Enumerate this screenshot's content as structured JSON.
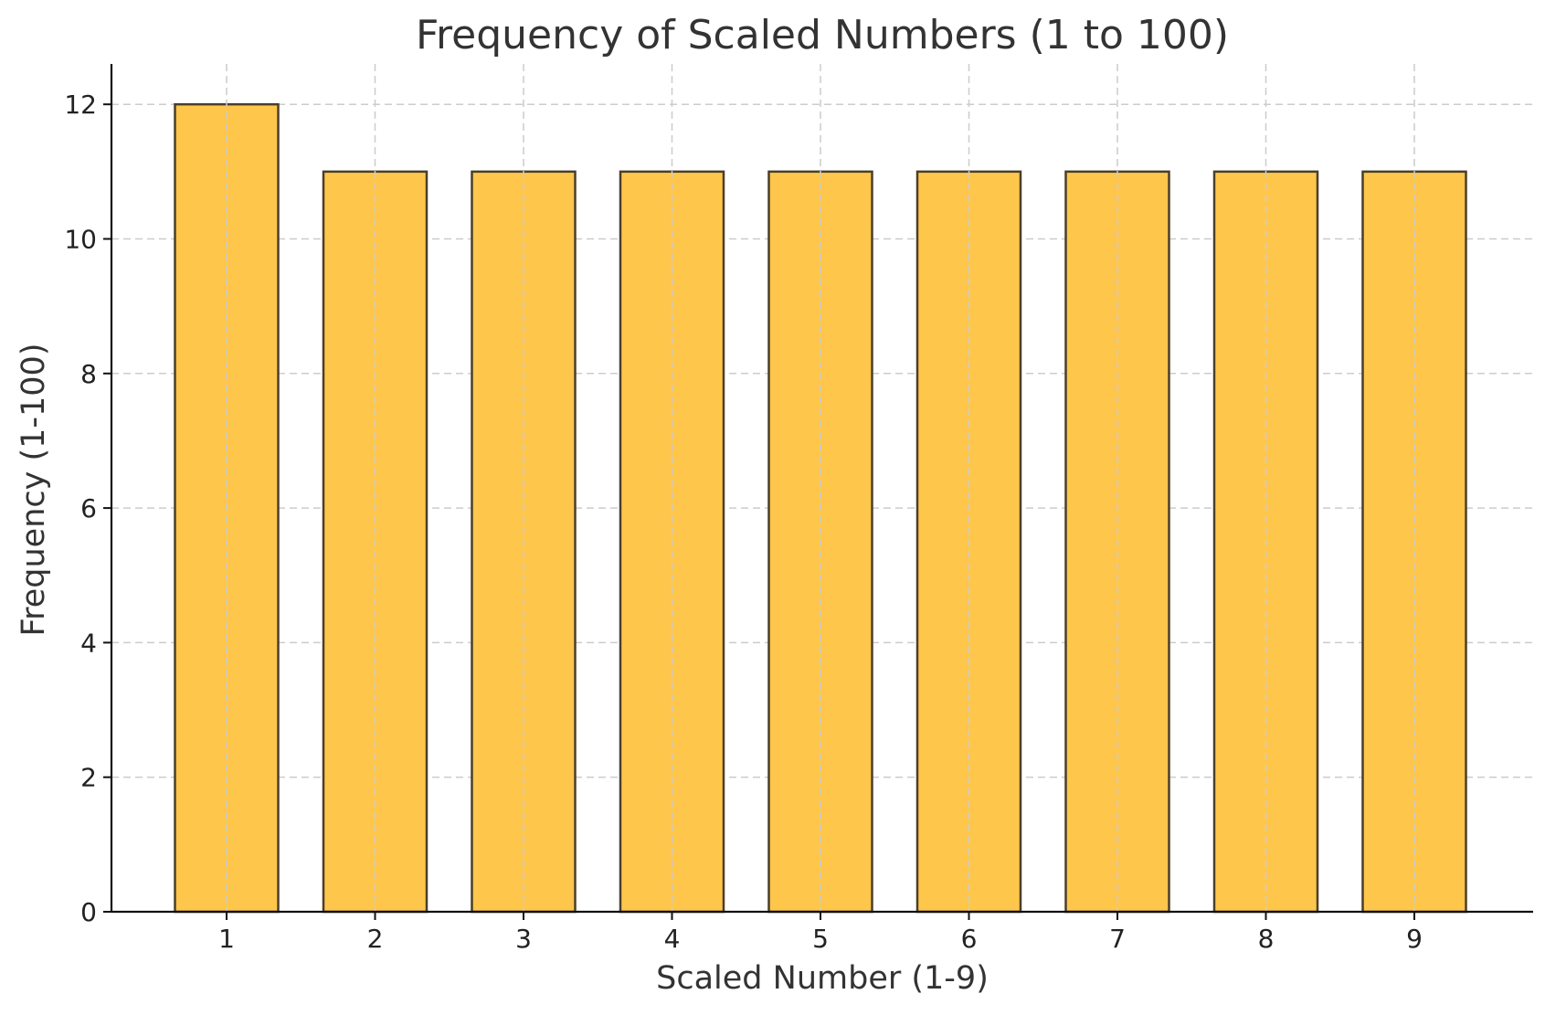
{
  "chart_data": {
    "type": "bar",
    "title": "Frequency of Scaled Numbers (1 to 100)",
    "xlabel": "Scaled Number (1-9)",
    "ylabel": "Frequency (1-100)",
    "categories": [
      "1",
      "2",
      "3",
      "4",
      "5",
      "6",
      "7",
      "8",
      "9"
    ],
    "values": [
      12,
      11,
      11,
      11,
      11,
      11,
      11,
      11,
      11
    ],
    "yticks": [
      0,
      2,
      4,
      6,
      8,
      10,
      12
    ],
    "ylim": [
      0,
      12.6
    ],
    "grid": true,
    "colors": {
      "bar_fill": "#ffc64c",
      "bar_edge": "#4a3f2a",
      "grid": "#cccccc",
      "axis": "#111111"
    }
  }
}
